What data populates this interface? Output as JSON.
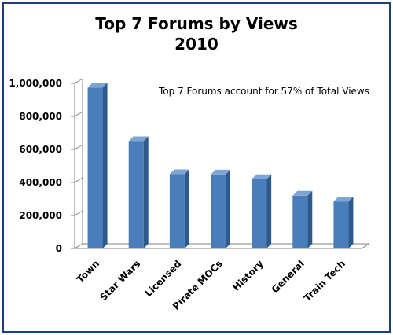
{
  "chart_data": {
    "type": "bar",
    "title": "Top 7 Forums by Views",
    "subtitle": "2010",
    "categories": [
      "Town",
      "Star Wars",
      "Licensed",
      "Pirate MOCs",
      "History",
      "General",
      "Train Tech"
    ],
    "values": [
      975000,
      650000,
      450000,
      448000,
      420000,
      320000,
      285000
    ],
    "ylim": [
      0,
      1000000
    ],
    "yticks": [
      0,
      200000,
      400000,
      600000,
      800000,
      1000000
    ],
    "ytick_labels": [
      "0",
      "200,000",
      "400,000",
      "600,000",
      "800,000",
      "1,000,000"
    ],
    "annotation": "Top 7 Forums account for 57% of Total Views",
    "colors": {
      "bar_front": "#4a7ebb",
      "bar_side": "#2c5a8e",
      "bar_top": "#7ea5d6",
      "frame": "#1f3f7a",
      "axis": "#808080"
    }
  }
}
